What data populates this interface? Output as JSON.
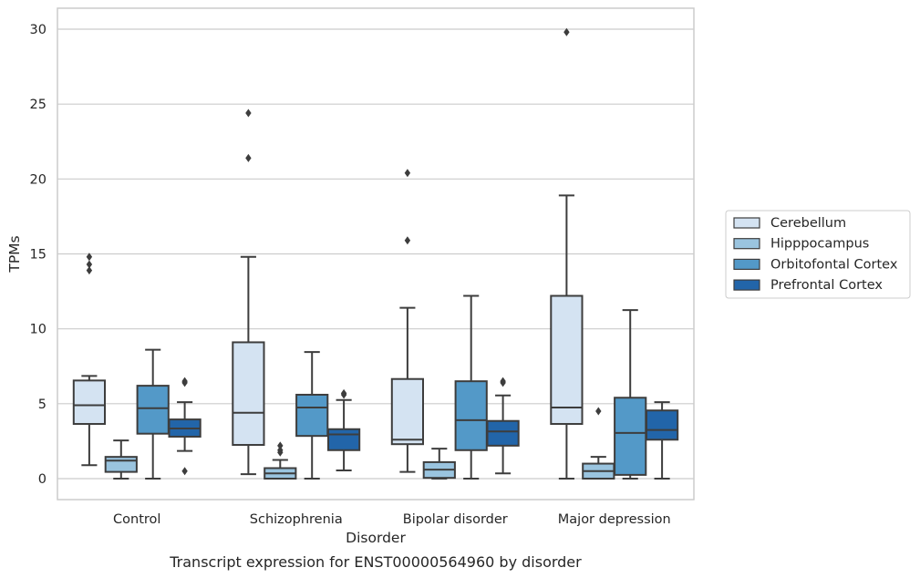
{
  "chart_data": {
    "type": "box",
    "caption": "Transcript expression for ENST00000564960 by disorder",
    "xlabel": "Disorder",
    "ylabel": "TPMs",
    "ylim": [
      -1.4,
      31.4
    ],
    "yticks": [
      0,
      5,
      10,
      15,
      20,
      25,
      30
    ],
    "grid": "horizontal",
    "legend_placement": "right",
    "categories": [
      "Control",
      "Schizophrenia",
      "Bipolar disorder",
      "Major depression"
    ],
    "series": [
      {
        "name": "Cerebellum",
        "color": "#d4e3f2",
        "boxes": [
          {
            "whislo": 0.9,
            "q1": 3.65,
            "med": 4.9,
            "q3": 6.55,
            "whishi": 6.85,
            "fliers": [
              13.9,
              14.3,
              14.8
            ]
          },
          {
            "whislo": 0.3,
            "q1": 2.25,
            "med": 4.4,
            "q3": 9.1,
            "whishi": 14.8,
            "fliers": [
              21.4,
              24.4
            ]
          },
          {
            "whislo": 0.45,
            "q1": 2.3,
            "med": 2.6,
            "q3": 6.65,
            "whishi": 11.4,
            "fliers": [
              15.9,
              20.4
            ]
          },
          {
            "whislo": 0.0,
            "q1": 3.65,
            "med": 4.75,
            "q3": 12.2,
            "whishi": 18.9,
            "fliers": [
              29.8
            ]
          }
        ]
      },
      {
        "name": "Hipppocampus",
        "color": "#9ac4df",
        "boxes": [
          {
            "whislo": 0.0,
            "q1": 0.45,
            "med": 1.2,
            "q3": 1.45,
            "whishi": 2.55,
            "fliers": []
          },
          {
            "whislo": 0.0,
            "q1": 0.0,
            "med": 0.35,
            "q3": 0.7,
            "whishi": 1.25,
            "fliers": [
              1.75,
              1.9,
              2.2
            ]
          },
          {
            "whislo": 0.0,
            "q1": 0.05,
            "med": 0.6,
            "q3": 1.1,
            "whishi": 2.0,
            "fliers": []
          },
          {
            "whislo": 0.0,
            "q1": 0.0,
            "med": 0.5,
            "q3": 1.0,
            "whishi": 1.45,
            "fliers": [
              4.5
            ]
          }
        ]
      },
      {
        "name": "Orbitofontal Cortex",
        "color": "#5399c8",
        "boxes": [
          {
            "whislo": 0.0,
            "q1": 3.0,
            "med": 4.7,
            "q3": 6.2,
            "whishi": 8.6,
            "fliers": []
          },
          {
            "whislo": 0.0,
            "q1": 2.85,
            "med": 4.75,
            "q3": 5.6,
            "whishi": 8.45,
            "fliers": []
          },
          {
            "whislo": 0.0,
            "q1": 1.9,
            "med": 3.9,
            "q3": 6.5,
            "whishi": 12.2,
            "fliers": []
          },
          {
            "whislo": 0.0,
            "q1": 0.25,
            "med": 3.05,
            "q3": 5.4,
            "whishi": 11.25,
            "fliers": []
          }
        ]
      },
      {
        "name": "Prefrontal Cortex",
        "color": "#2265a9",
        "boxes": [
          {
            "whislo": 1.85,
            "q1": 2.8,
            "med": 3.35,
            "q3": 3.95,
            "whishi": 5.1,
            "fliers": [
              0.5,
              6.4,
              6.5
            ]
          },
          {
            "whislo": 0.55,
            "q1": 1.9,
            "med": 2.95,
            "q3": 3.3,
            "whishi": 5.25,
            "fliers": [
              5.6,
              5.7
            ]
          },
          {
            "whislo": 0.35,
            "q1": 2.2,
            "med": 3.15,
            "q3": 3.85,
            "whishi": 5.55,
            "fliers": [
              6.4,
              6.5
            ]
          },
          {
            "whislo": 0.0,
            "q1": 2.6,
            "med": 3.25,
            "q3": 4.55,
            "whishi": 5.1,
            "fliers": []
          }
        ]
      }
    ]
  }
}
